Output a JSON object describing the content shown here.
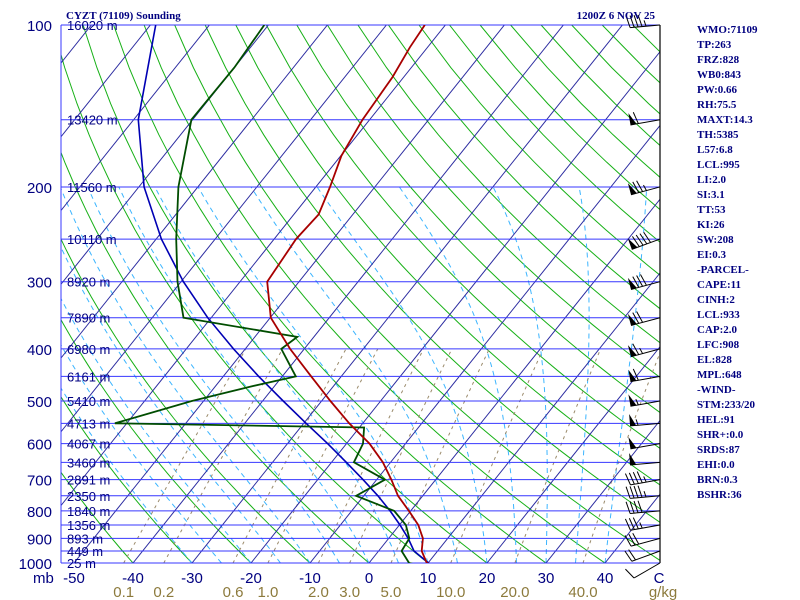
{
  "header": {
    "station": "CYZT (71109) Sounding",
    "time": "1200Z  6 NOV 25"
  },
  "indices": [
    "WMO:71109",
    "TP:263",
    "FRZ:828",
    "WB0:843",
    "PW:0.66",
    "RH:75.5",
    "MAXT:14.3",
    "TH:5385",
    "L57:6.8",
    "LCL:995",
    "LI:2.0",
    "SI:3.1",
    "TT:53",
    "KI:26",
    "SW:208",
    "EI:0.3",
    "-PARCEL-",
    "CAPE:11",
    "CINH:2",
    "LCL:933",
    "CAP:2.0",
    "LFC:908",
    "EL:828",
    "MPL:648",
    "-WIND-",
    "STM:233/20",
    "HEL:91",
    "SHR+:0.0",
    "SRDS:87",
    "EHI:0.0",
    "BRN:0.3",
    "BSHR:36"
  ],
  "chart_data": {
    "type": "skew-t log-p sounding",
    "pressure_unit": "mb",
    "mixing_ratio_unit": "g/kg",
    "pressure_levels": [
      100,
      200,
      300,
      400,
      500,
      600,
      700,
      800,
      900,
      1000
    ],
    "temperature_ticks": [
      -50,
      -40,
      -30,
      -20,
      -10,
      0,
      10,
      20,
      30,
      40
    ],
    "mixing_ratio_ticks": [
      "0.1",
      "0.2",
      "0.6",
      "1.0",
      "2.0",
      "3.0",
      "5.0",
      "10.0",
      "20.0",
      "40.0"
    ],
    "mixing_ratio_values": [
      0.1,
      0.2,
      0.6,
      1.0,
      2.0,
      3.0,
      5.0,
      10.0,
      20.0,
      40.0
    ],
    "heights": [
      {
        "p": 100,
        "label": "16020 m"
      },
      {
        "p": 150,
        "label": "13420 m"
      },
      {
        "p": 200,
        "label": "11560 m"
      },
      {
        "p": 250,
        "label": "10110 m"
      },
      {
        "p": 300,
        "label": "8920 m"
      },
      {
        "p": 350,
        "label": "7890 m"
      },
      {
        "p": 400,
        "label": "6980 m"
      },
      {
        "p": 450,
        "label": "6161 m"
      },
      {
        "p": 500,
        "label": "5410 m"
      },
      {
        "p": 550,
        "label": "4713 m"
      },
      {
        "p": 600,
        "label": "4067 m"
      },
      {
        "p": 650,
        "label": "3460 m"
      },
      {
        "p": 700,
        "label": "2891 m"
      },
      {
        "p": 750,
        "label": "2350 m"
      },
      {
        "p": 800,
        "label": "1840 m"
      },
      {
        "p": 850,
        "label": "1356 m"
      },
      {
        "p": 900,
        "label": "893 m"
      },
      {
        "p": 950,
        "label": "449 m"
      },
      {
        "p": 1000,
        "label": "25 m"
      }
    ],
    "temperature": [
      [
        1005,
        10.5
      ],
      [
        1000,
        9.8
      ],
      [
        950,
        7.3
      ],
      [
        900,
        5.8
      ],
      [
        850,
        3.2
      ],
      [
        800,
        -0.3
      ],
      [
        750,
        -4.2
      ],
      [
        700,
        -7.5
      ],
      [
        650,
        -11.3
      ],
      [
        600,
        -16.1
      ],
      [
        550,
        -22.3
      ],
      [
        500,
        -28.5
      ],
      [
        450,
        -35.1
      ],
      [
        400,
        -42.4
      ],
      [
        350,
        -49.9
      ],
      [
        300,
        -55.4
      ],
      [
        250,
        -56.3
      ],
      [
        225,
        -55.8
      ],
      [
        200,
        -57.6
      ],
      [
        175,
        -59.9
      ],
      [
        150,
        -61.2
      ],
      [
        125,
        -61.9
      ],
      [
        110,
        -63.0
      ],
      [
        100,
        -63.5
      ]
    ],
    "dewpoint": [
      [
        1005,
        7.8
      ],
      [
        1000,
        6.8
      ],
      [
        950,
        3.9
      ],
      [
        900,
        3.5
      ],
      [
        850,
        1.1
      ],
      [
        800,
        -2.8
      ],
      [
        750,
        -11.3
      ],
      [
        700,
        -8.6
      ],
      [
        650,
        -16.2
      ],
      [
        600,
        -17.2
      ],
      [
        560,
        -19.2
      ],
      [
        550,
        -62.0
      ],
      [
        500,
        -52.0
      ],
      [
        470,
        -44.0
      ],
      [
        450,
        -37.7
      ],
      [
        400,
        -43.9
      ],
      [
        380,
        -42.8
      ],
      [
        350,
        -64.7
      ],
      [
        300,
        -70.6
      ],
      [
        250,
        -76.6
      ],
      [
        200,
        -83.3
      ],
      [
        150,
        -90.2
      ],
      [
        120,
        -90.0
      ],
      [
        100,
        -90.7
      ]
    ],
    "parcel": [
      [
        1005,
        10.5
      ],
      [
        950,
        6.0
      ],
      [
        900,
        3.3
      ],
      [
        850,
        0.1
      ],
      [
        800,
        -3.5
      ],
      [
        750,
        -7.6
      ],
      [
        700,
        -12.3
      ],
      [
        650,
        -17.5
      ],
      [
        600,
        -23.2
      ],
      [
        550,
        -29.6
      ],
      [
        500,
        -36.5
      ],
      [
        450,
        -44.0
      ],
      [
        400,
        -52.0
      ],
      [
        350,
        -60.6
      ],
      [
        300,
        -69.6
      ],
      [
        250,
        -79.1
      ],
      [
        200,
        -89.1
      ],
      [
        150,
        -99.2
      ],
      [
        100,
        -109.1
      ]
    ],
    "wind": [
      {
        "p": 1000,
        "dir": 240,
        "kt": 10
      },
      {
        "p": 950,
        "dir": 250,
        "kt": 20
      },
      {
        "p": 900,
        "dir": 255,
        "kt": 30
      },
      {
        "p": 850,
        "dir": 260,
        "kt": 35
      },
      {
        "p": 800,
        "dir": 265,
        "kt": 40
      },
      {
        "p": 750,
        "dir": 265,
        "kt": 45
      },
      {
        "p": 700,
        "dir": 260,
        "kt": 45
      },
      {
        "p": 650,
        "dir": 265,
        "kt": 50
      },
      {
        "p": 600,
        "dir": 260,
        "kt": 50
      },
      {
        "p": 550,
        "dir": 265,
        "kt": 55
      },
      {
        "p": 500,
        "dir": 260,
        "kt": 55
      },
      {
        "p": 450,
        "dir": 260,
        "kt": 60
      },
      {
        "p": 400,
        "dir": 255,
        "kt": 65
      },
      {
        "p": 350,
        "dir": 255,
        "kt": 70
      },
      {
        "p": 300,
        "dir": 255,
        "kt": 80
      },
      {
        "p": 250,
        "dir": 250,
        "kt": 90
      },
      {
        "p": 200,
        "dir": 255,
        "kt": 75
      },
      {
        "p": 150,
        "dir": 260,
        "kt": 60
      },
      {
        "p": 100,
        "dir": 265,
        "kt": 45
      }
    ],
    "colors": {
      "isobar": "#3737ff",
      "isotherm": "#2a2aa0",
      "dry_adiabat": "#16b016",
      "moist_adiabat": "#3cb5ff",
      "mixing_ratio": "#9a8a6a",
      "temperature": "#a80000",
      "dewpoint": "#004d00",
      "parcel": "#0000b4",
      "text": "#000080",
      "mr_text": "#8c7a3c"
    }
  }
}
